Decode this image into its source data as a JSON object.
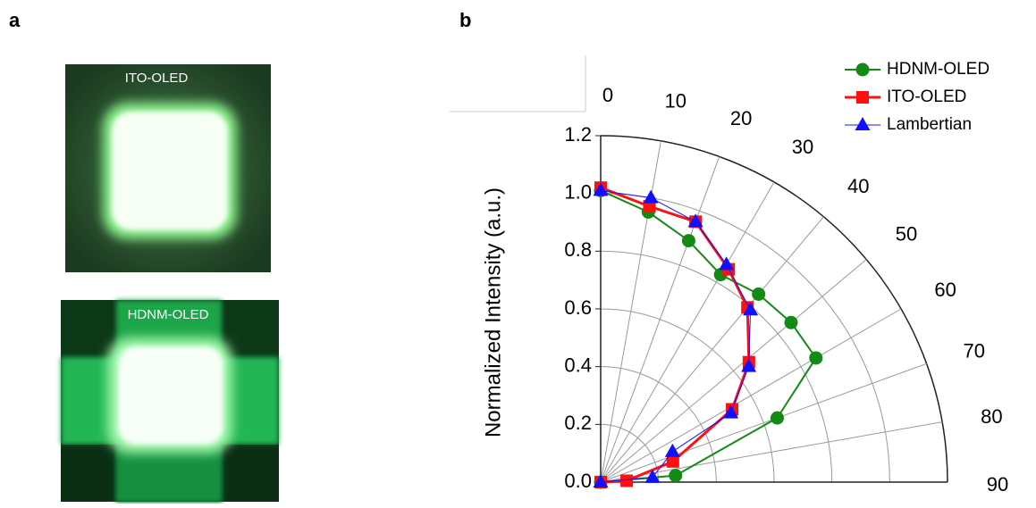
{
  "panel_labels": [
    "a",
    "b"
  ],
  "images": [
    "ITO-OLED",
    "HDNM-OLED"
  ],
  "chart_data": {
    "type": "polar",
    "ylabel": "Normalized Intensity (a.u.)",
    "ylim": [
      0,
      1.2
    ],
    "yticks": [
      {
        "value": 0,
        "label": "0.0"
      },
      0.2,
      0.4,
      0.6,
      0.8,
      {
        "value": 1,
        "label": "1.0"
      },
      1.2
    ],
    "xlim": [
      0,
      90
    ],
    "xticks": [
      0,
      10,
      20,
      30,
      40,
      50,
      60,
      70,
      80,
      90
    ],
    "grid": true,
    "legend": "upper right",
    "series": [
      {
        "name": "HDNM-OLED",
        "color": "#138a13",
        "marker": "circle",
        "x": [
          0,
          10,
          20,
          30,
          40,
          50,
          60,
          70,
          85,
          90
        ],
        "values": [
          1.01,
          0.95,
          0.89,
          0.83,
          0.85,
          0.86,
          0.86,
          0.65,
          0.26,
          0
        ]
      },
      {
        "name": "ITO-OLED",
        "color": "#ff1010",
        "marker": "square",
        "x": [
          0,
          10,
          20,
          31,
          40,
          51,
          61,
          74,
          87,
          90
        ],
        "values": [
          1.02,
          0.97,
          0.96,
          0.86,
          0.79,
          0.66,
          0.52,
          0.26,
          0.09,
          0
        ]
      },
      {
        "name": "Lambertian",
        "color": "#1010ff",
        "marker": "triangle",
        "x": [
          0,
          10,
          20,
          30,
          41,
          52,
          62,
          67,
          85,
          90
        ],
        "values": [
          1.01,
          1.0,
          0.96,
          0.87,
          0.79,
          0.65,
          0.51,
          0.27,
          0.18,
          0
        ]
      }
    ]
  }
}
